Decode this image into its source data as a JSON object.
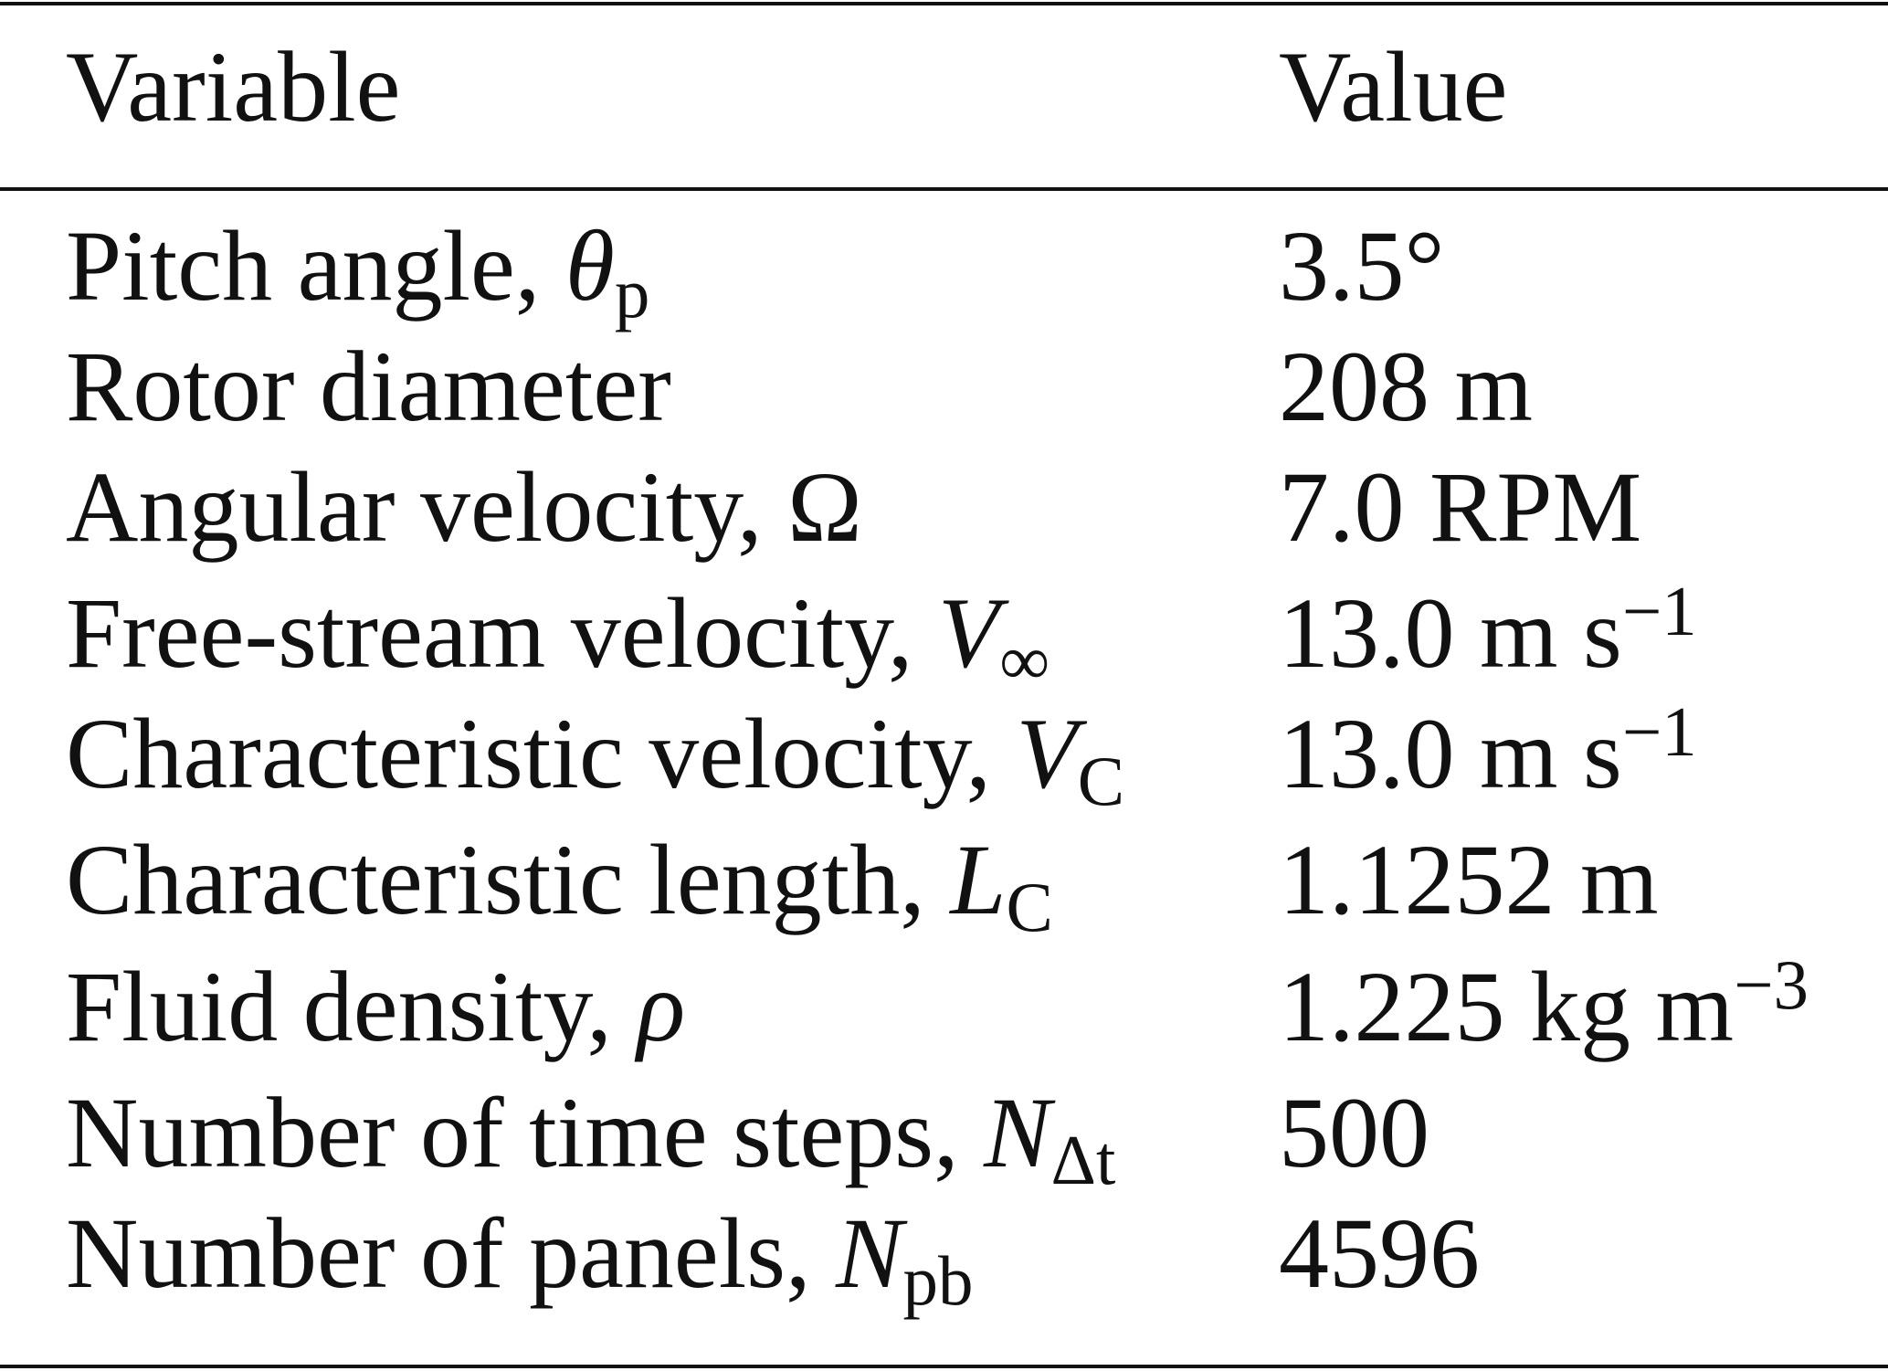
{
  "header": {
    "variable": "Variable",
    "value": "Value"
  },
  "table": {
    "rows": [
      {
        "variable": {
          "text": "Pitch angle, ",
          "symbol": "θ",
          "sub": "p"
        },
        "value": {
          "text": "3.5°"
        }
      },
      {
        "variable": {
          "text": "Rotor diameter"
        },
        "value": {
          "text": "208 m"
        }
      },
      {
        "variable": {
          "text": "Angular velocity, Ω"
        },
        "value": {
          "text": "7.0 RPM"
        }
      },
      {
        "variable": {
          "text": "Free-stream velocity, ",
          "symbol": "V",
          "sub": "∞"
        },
        "value": {
          "text": "13.0 m s",
          "sup": "−1"
        }
      },
      {
        "variable": {
          "text": "Characteristic velocity, ",
          "symbol": "V",
          "sub": "C"
        },
        "value": {
          "text": "13.0 m s",
          "sup": "−1"
        }
      },
      {
        "variable": {
          "text": "Characteristic length, ",
          "symbol": "L",
          "sub": "C"
        },
        "value": {
          "text": "1.1252 m"
        }
      },
      {
        "variable": {
          "text": "Fluid density, ",
          "symbol": "ρ"
        },
        "value": {
          "text": "1.225 kg m",
          "sup": "−3"
        }
      },
      {
        "variable": {
          "text": "Number of time steps, ",
          "symbol": "N",
          "sub": "Δt"
        },
        "value": {
          "text": "500"
        }
      },
      {
        "variable": {
          "text": "Number of panels, ",
          "symbol": "N",
          "sub": "pb"
        },
        "value": {
          "text": "4596"
        }
      }
    ]
  }
}
